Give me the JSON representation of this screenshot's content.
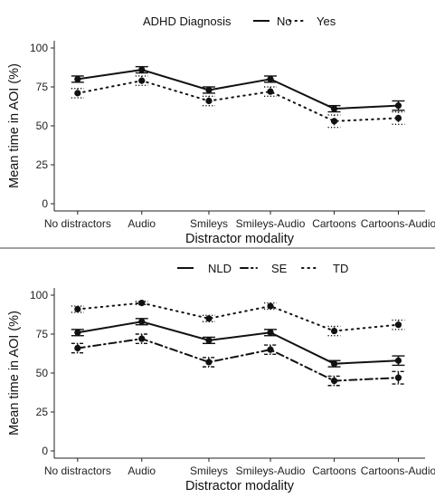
{
  "chart_data": [
    {
      "type": "line",
      "legend_title": "ADHD Diagnosis",
      "legend_position": "top",
      "xlabel": "Distractor modality",
      "ylabel": "Mean time in AOI (%)",
      "ylim": [
        0,
        100
      ],
      "yticks": [
        "0",
        "25",
        "50",
        "75",
        "100"
      ],
      "categories": [
        "No distractors",
        "Audio",
        "Smileys",
        "Smileys-Audio",
        "Cartoons",
        "Cartoons-Audio"
      ],
      "series": [
        {
          "name": "No",
          "style": "solid",
          "values": [
            80,
            86,
            73,
            80,
            61,
            63
          ],
          "err": [
            2,
            2,
            2,
            2,
            2,
            3
          ]
        },
        {
          "name": "Yes",
          "style": "dotted",
          "values": [
            71,
            79,
            66,
            72,
            53,
            55
          ],
          "err": [
            3,
            3,
            3,
            3,
            4,
            4
          ]
        }
      ]
    },
    {
      "type": "line",
      "legend_title": "",
      "legend_position": "top",
      "xlabel": "Distractor modality",
      "ylabel": "Mean time in AOI (%)",
      "ylim": [
        0,
        100
      ],
      "yticks": [
        "0",
        "25",
        "50",
        "75",
        "100"
      ],
      "categories": [
        "No distractors",
        "Audio",
        "Smileys",
        "Smileys-Audio",
        "Cartoons",
        "Cartoons-Audio"
      ],
      "series": [
        {
          "name": "NLD",
          "style": "solid",
          "values": [
            76,
            83,
            71,
            76,
            56,
            58
          ],
          "err": [
            2,
            2,
            2,
            2,
            2,
            3
          ]
        },
        {
          "name": "SE",
          "style": "dashdot",
          "values": [
            66,
            72,
            57,
            65,
            45,
            47
          ],
          "err": [
            3,
            3,
            3,
            3,
            3,
            4
          ]
        },
        {
          "name": "TD",
          "style": "dotted",
          "values": [
            91,
            95,
            85,
            93,
            77,
            81
          ],
          "err": [
            2,
            1,
            2,
            2,
            3,
            3
          ]
        }
      ]
    }
  ]
}
